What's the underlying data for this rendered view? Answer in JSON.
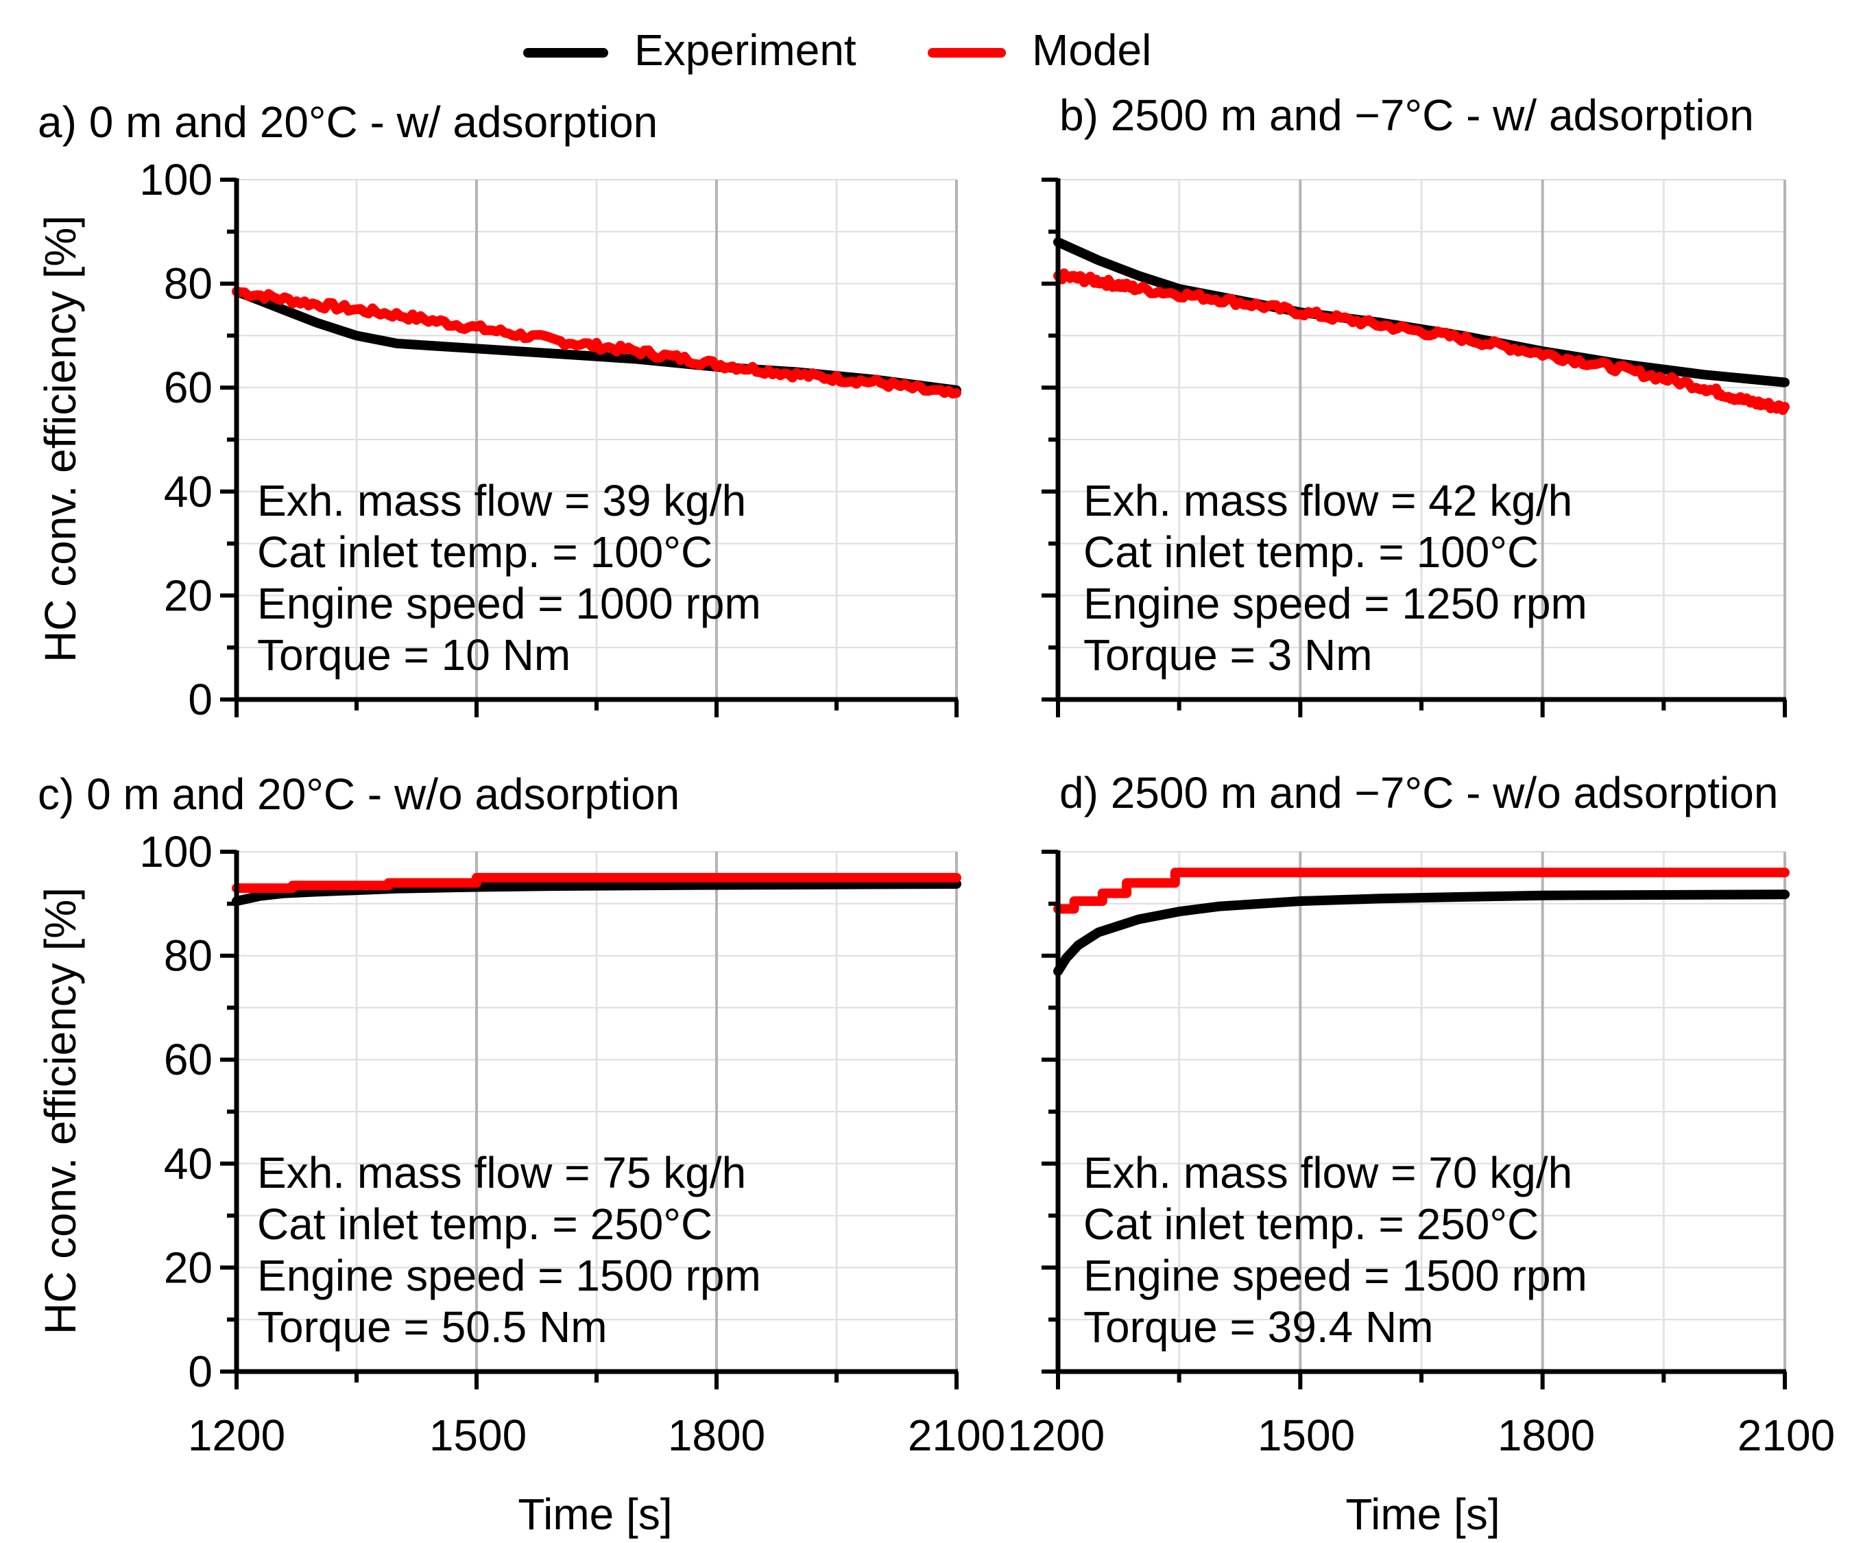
{
  "legend": {
    "items": [
      {
        "label": "Experiment",
        "color": "#000000"
      },
      {
        "label": "Model",
        "color": "#ff0000"
      }
    ]
  },
  "axes": {
    "ylabel": "HC conv. efficiency [%]",
    "xlabel": "Time [s]",
    "xticks": [
      "1200",
      "1500",
      "1800",
      "2100"
    ],
    "yticks": [
      "0",
      "20",
      "40",
      "60",
      "80",
      "100"
    ]
  },
  "chart_data": [
    {
      "type": "line",
      "title": "a) 0 m and 20°C - w/ adsorption",
      "xlim": [
        1200,
        2100
      ],
      "ylim": [
        0,
        100
      ],
      "annotations": [
        "Exh. mass flow = 39 kg/h",
        "Cat inlet temp. = 100°C",
        "Engine speed = 1000 rpm",
        "Torque = 10 Nm"
      ],
      "series": [
        {
          "name": "Experiment",
          "color": "#000000",
          "x": [
            1200,
            1250,
            1300,
            1350,
            1400,
            1450,
            1500,
            1600,
            1700,
            1800,
            1900,
            2000,
            2100
          ],
          "y": [
            78.5,
            75.5,
            72.5,
            70,
            68.5,
            68,
            67.5,
            66.5,
            65.5,
            64,
            63,
            61.5,
            59.5
          ]
        },
        {
          "name": "Model",
          "color": "#ff0000",
          "x": [
            1200,
            1300,
            1400,
            1500,
            1600,
            1700,
            1800,
            1900,
            2000,
            2100
          ],
          "y": [
            78.5,
            76,
            74,
            71.5,
            69,
            67,
            64.5,
            62.5,
            61,
            58.5
          ]
        }
      ]
    },
    {
      "type": "line",
      "title": "b) 2500 m and −7°C - w/ adsorption",
      "xlim": [
        1200,
        2100
      ],
      "ylim": [
        0,
        100
      ],
      "annotations": [
        "Exh. mass flow = 42 kg/h",
        "Cat inlet temp. = 100°C",
        "Engine speed = 1250 rpm",
        "Torque = 3 Nm"
      ],
      "series": [
        {
          "name": "Experiment",
          "color": "#000000",
          "x": [
            1200,
            1250,
            1300,
            1350,
            1400,
            1500,
            1600,
            1700,
            1800,
            1900,
            2000,
            2100
          ],
          "y": [
            88,
            84.5,
            81.5,
            79,
            77.5,
            74.5,
            72.5,
            70,
            67,
            64.5,
            62.5,
            61
          ]
        },
        {
          "name": "Model",
          "color": "#ff0000",
          "x": [
            1200,
            1250,
            1300,
            1400,
            1500,
            1600,
            1700,
            1800,
            1900,
            2000,
            2050,
            2100
          ],
          "y": [
            81.5,
            80.5,
            79,
            77,
            74.5,
            72,
            69.5,
            66.5,
            63.5,
            60,
            57.5,
            56
          ]
        }
      ]
    },
    {
      "type": "line",
      "title": "c) 0 m and 20°C - w/o adsorption",
      "xlim": [
        1200,
        2100
      ],
      "ylim": [
        0,
        100
      ],
      "annotations": [
        "Exh. mass flow = 75 kg/h",
        "Cat inlet temp. = 250°C",
        "Engine speed = 1500 rpm",
        "Torque = 50.5 Nm"
      ],
      "series": [
        {
          "name": "Experiment",
          "color": "#000000",
          "x": [
            1200,
            1230,
            1260,
            1300,
            1350,
            1400,
            1500,
            1600,
            1800,
            2100
          ],
          "y": [
            90.5,
            91.5,
            92,
            92.3,
            92.6,
            92.9,
            93.2,
            93.4,
            93.6,
            93.8
          ]
        },
        {
          "name": "Model",
          "color": "#ff0000",
          "x": [
            1200,
            1270,
            1270,
            1390,
            1390,
            1500,
            1500,
            2100
          ],
          "y": [
            93,
            93,
            93.5,
            93.5,
            94,
            94,
            95,
            95
          ]
        }
      ]
    },
    {
      "type": "line",
      "title": "d) 2500 m and −7°C - w/o adsorption",
      "xlim": [
        1200,
        2100
      ],
      "ylim": [
        0,
        100
      ],
      "annotations": [
        "Exh. mass flow = 70 kg/h",
        "Cat inlet temp. = 250°C",
        "Engine speed = 1500 rpm",
        "Torque = 39.4 Nm"
      ],
      "series": [
        {
          "name": "Experiment",
          "color": "#000000",
          "x": [
            1200,
            1210,
            1225,
            1250,
            1300,
            1350,
            1400,
            1500,
            1600,
            1700,
            1800,
            2100
          ],
          "y": [
            77,
            79.5,
            82,
            84.5,
            87,
            88.5,
            89.5,
            90.5,
            91,
            91.3,
            91.6,
            91.8
          ]
        },
        {
          "name": "Model",
          "color": "#ff0000",
          "x": [
            1200,
            1220,
            1220,
            1255,
            1255,
            1285,
            1285,
            1345,
            1345,
            2100
          ],
          "y": [
            89,
            89,
            90.5,
            90.5,
            92,
            92,
            94,
            94,
            96,
            96
          ]
        }
      ]
    }
  ]
}
